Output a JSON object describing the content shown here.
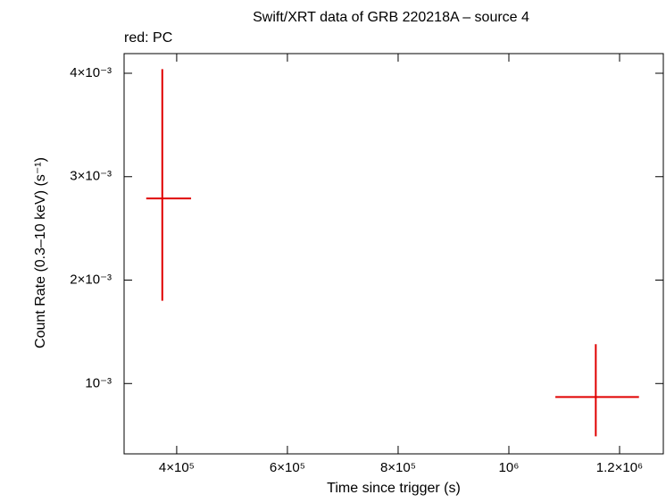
{
  "chart_data": {
    "type": "errorbar",
    "title": "Swift/XRT data of GRB 220218A – source 4",
    "annotation": "red: PC",
    "xlabel": "Time since trigger (s)",
    "ylabel": "Count Rate (0.3–10 keV) (s⁻¹)",
    "xlim": [
      305000,
      1279000
    ],
    "ylim": [
      0.00032,
      0.00419
    ],
    "xticks": [
      {
        "value": 400000,
        "label": "4×10⁵"
      },
      {
        "value": 600000,
        "label": "6×10⁵"
      },
      {
        "value": 800000,
        "label": "8×10⁵"
      },
      {
        "value": 1000000,
        "label": "10⁶"
      },
      {
        "value": 1200000,
        "label": "1.2×10⁶"
      }
    ],
    "yticks": [
      {
        "value": 0.001,
        "label": "10⁻³"
      },
      {
        "value": 0.002,
        "label": "2×10⁻³"
      },
      {
        "value": 0.003,
        "label": "3×10⁻³"
      },
      {
        "value": 0.004,
        "label": "4×10⁻³"
      }
    ],
    "series": [
      {
        "color": "#e00000",
        "x": [
          374000,
          1157000
        ],
        "xerr_minus": [
          29000,
          73000
        ],
        "xerr_plus": [
          52000,
          78000
        ],
        "values": [
          0.00279,
          0.00087
        ],
        "yerr_minus": [
          0.00099,
          0.00038
        ],
        "yerr_plus": [
          0.00125,
          0.00051
        ]
      }
    ]
  }
}
